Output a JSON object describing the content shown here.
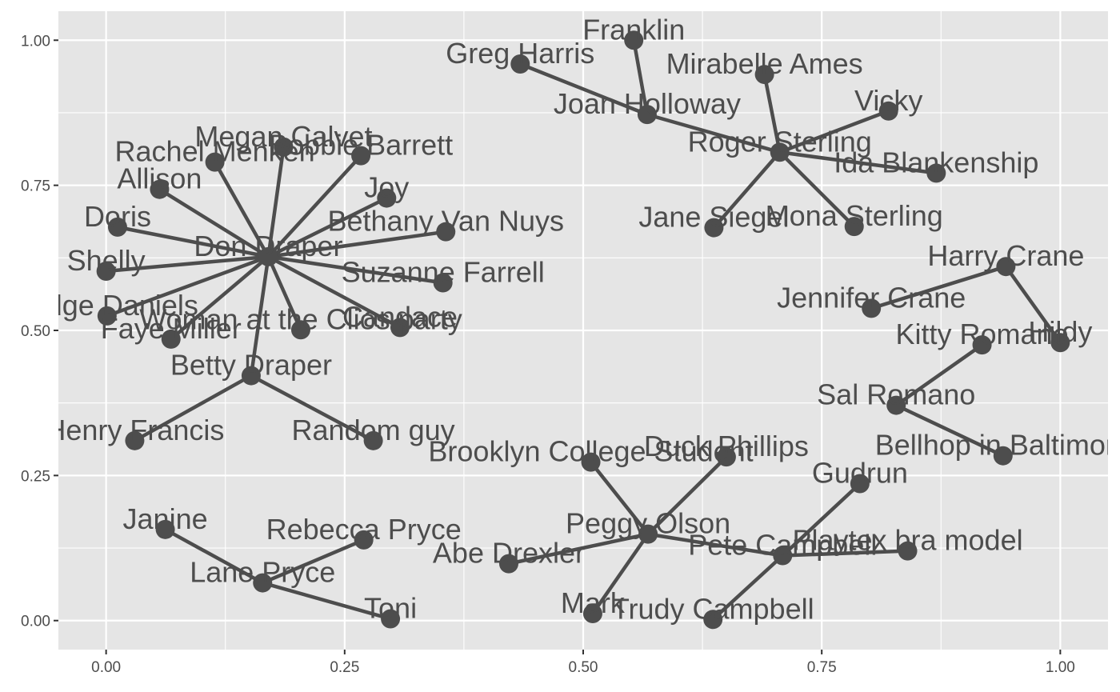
{
  "chart_data": {
    "type": "scatter",
    "subtype": "network",
    "title": "",
    "xlabel": "",
    "ylabel": "",
    "xlim": [
      -0.05,
      1.05
    ],
    "ylim": [
      -0.05,
      1.05
    ],
    "grid": true,
    "x_ticks": [
      0,
      0.25,
      0.5,
      0.75,
      1
    ],
    "y_ticks": [
      0,
      0.25,
      0.5,
      0.75,
      1
    ],
    "x_tick_labels": [
      "0.00",
      "0.25",
      "0.50",
      "0.75",
      "1.00"
    ],
    "y_tick_labels": [
      "0.00",
      "0.25",
      "0.50",
      "0.75",
      "1.00"
    ],
    "colors": {
      "panel_background": "#e5e5e5",
      "grid": "#ffffff",
      "node": "#4d4d4d",
      "edge": "#4d4d4d",
      "label": "#4d4d4d"
    },
    "nodes": [
      {
        "name": "Don Draper",
        "x": 0.17,
        "y": 0.627
      },
      {
        "name": "Megan Calvet",
        "x": 0.186,
        "y": 0.816
      },
      {
        "name": "Rachel Menken",
        "x": 0.114,
        "y": 0.79
      },
      {
        "name": "Bobbie Barrett",
        "x": 0.267,
        "y": 0.801
      },
      {
        "name": "Allison",
        "x": 0.056,
        "y": 0.743
      },
      {
        "name": "Joy",
        "x": 0.294,
        "y": 0.728
      },
      {
        "name": "Doris",
        "x": 0.012,
        "y": 0.678
      },
      {
        "name": "Bethany Van Nuys",
        "x": 0.356,
        "y": 0.67
      },
      {
        "name": "Shelly",
        "x": 0.0,
        "y": 0.602
      },
      {
        "name": "Suzanne Farrell",
        "x": 0.353,
        "y": 0.582
      },
      {
        "name": "Midge Daniels",
        "x": 0.001,
        "y": 0.525
      },
      {
        "name": "Faye Miller",
        "x": 0.068,
        "y": 0.485
      },
      {
        "name": "Woman at the Clios party",
        "x": 0.204,
        "y": 0.501
      },
      {
        "name": "Candace",
        "x": 0.308,
        "y": 0.505
      },
      {
        "name": "Betty Draper",
        "x": 0.152,
        "y": 0.422
      },
      {
        "name": "Henry Francis",
        "x": 0.03,
        "y": 0.31
      },
      {
        "name": "Random guy",
        "x": 0.28,
        "y": 0.31
      },
      {
        "name": "Janine",
        "x": 0.062,
        "y": 0.157
      },
      {
        "name": "Rebecca Pryce",
        "x": 0.27,
        "y": 0.139
      },
      {
        "name": "Lane Pryce",
        "x": 0.164,
        "y": 0.065
      },
      {
        "name": "Toni",
        "x": 0.298,
        "y": 0.003
      },
      {
        "name": "Franklin",
        "x": 0.553,
        "y": 1.0
      },
      {
        "name": "Greg Harris",
        "x": 0.434,
        "y": 0.959
      },
      {
        "name": "Joan Holloway",
        "x": 0.567,
        "y": 0.872
      },
      {
        "name": "Mirabelle Ames",
        "x": 0.69,
        "y": 0.941
      },
      {
        "name": "Vicky",
        "x": 0.82,
        "y": 0.878
      },
      {
        "name": "Roger Sterling",
        "x": 0.706,
        "y": 0.807
      },
      {
        "name": "Ida Blankenship",
        "x": 0.87,
        "y": 0.771
      },
      {
        "name": "Jane Siegel",
        "x": 0.637,
        "y": 0.677
      },
      {
        "name": "Mona Sterling",
        "x": 0.784,
        "y": 0.679
      },
      {
        "name": "Harry Crane",
        "x": 0.943,
        "y": 0.61
      },
      {
        "name": "Jennifer Crane",
        "x": 0.802,
        "y": 0.538
      },
      {
        "name": "Kitty Romano",
        "x": 0.918,
        "y": 0.475
      },
      {
        "name": "Hildy",
        "x": 1.0,
        "y": 0.479
      },
      {
        "name": "Sal Romano",
        "x": 0.828,
        "y": 0.371
      },
      {
        "name": "Bellhop in Baltimore",
        "x": 0.94,
        "y": 0.284
      },
      {
        "name": "Brooklyn College Student",
        "x": 0.508,
        "y": 0.273
      },
      {
        "name": "Duck Phillips",
        "x": 0.65,
        "y": 0.282
      },
      {
        "name": "Gudrun",
        "x": 0.79,
        "y": 0.236
      },
      {
        "name": "Peggy Olson",
        "x": 0.568,
        "y": 0.149
      },
      {
        "name": "Abe Drexler",
        "x": 0.422,
        "y": 0.098
      },
      {
        "name": "Pete Campbell",
        "x": 0.709,
        "y": 0.112
      },
      {
        "name": "Playtex bra model",
        "x": 0.84,
        "y": 0.12
      },
      {
        "name": "Mark",
        "x": 0.51,
        "y": 0.012
      },
      {
        "name": "Trudy Campbell",
        "x": 0.636,
        "y": 0.002
      }
    ],
    "edges": [
      [
        "Don Draper",
        "Megan Calvet"
      ],
      [
        "Don Draper",
        "Rachel Menken"
      ],
      [
        "Don Draper",
        "Bobbie Barrett"
      ],
      [
        "Don Draper",
        "Allison"
      ],
      [
        "Don Draper",
        "Joy"
      ],
      [
        "Don Draper",
        "Doris"
      ],
      [
        "Don Draper",
        "Bethany Van Nuys"
      ],
      [
        "Don Draper",
        "Shelly"
      ],
      [
        "Don Draper",
        "Suzanne Farrell"
      ],
      [
        "Don Draper",
        "Midge Daniels"
      ],
      [
        "Don Draper",
        "Faye Miller"
      ],
      [
        "Don Draper",
        "Woman at the Clios party"
      ],
      [
        "Don Draper",
        "Candace"
      ],
      [
        "Don Draper",
        "Betty Draper"
      ],
      [
        "Betty Draper",
        "Henry Francis"
      ],
      [
        "Betty Draper",
        "Random guy"
      ],
      [
        "Lane Pryce",
        "Janine"
      ],
      [
        "Lane Pryce",
        "Rebecca Pryce"
      ],
      [
        "Lane Pryce",
        "Toni"
      ],
      [
        "Joan Holloway",
        "Franklin"
      ],
      [
        "Joan Holloway",
        "Greg Harris"
      ],
      [
        "Joan Holloway",
        "Roger Sterling"
      ],
      [
        "Roger Sterling",
        "Mirabelle Ames"
      ],
      [
        "Roger Sterling",
        "Vicky"
      ],
      [
        "Roger Sterling",
        "Ida Blankenship"
      ],
      [
        "Roger Sterling",
        "Jane Siegel"
      ],
      [
        "Roger Sterling",
        "Mona Sterling"
      ],
      [
        "Harry Crane",
        "Jennifer Crane"
      ],
      [
        "Harry Crane",
        "Hildy"
      ],
      [
        "Sal Romano",
        "Kitty Romano"
      ],
      [
        "Sal Romano",
        "Bellhop in Baltimore"
      ],
      [
        "Peggy Olson",
        "Brooklyn College Student"
      ],
      [
        "Peggy Olson",
        "Duck Phillips"
      ],
      [
        "Peggy Olson",
        "Abe Drexler"
      ],
      [
        "Peggy Olson",
        "Mark"
      ],
      [
        "Peggy Olson",
        "Pete Campbell"
      ],
      [
        "Pete Campbell",
        "Gudrun"
      ],
      [
        "Pete Campbell",
        "Playtex bra model"
      ],
      [
        "Pete Campbell",
        "Trudy Campbell"
      ]
    ]
  }
}
